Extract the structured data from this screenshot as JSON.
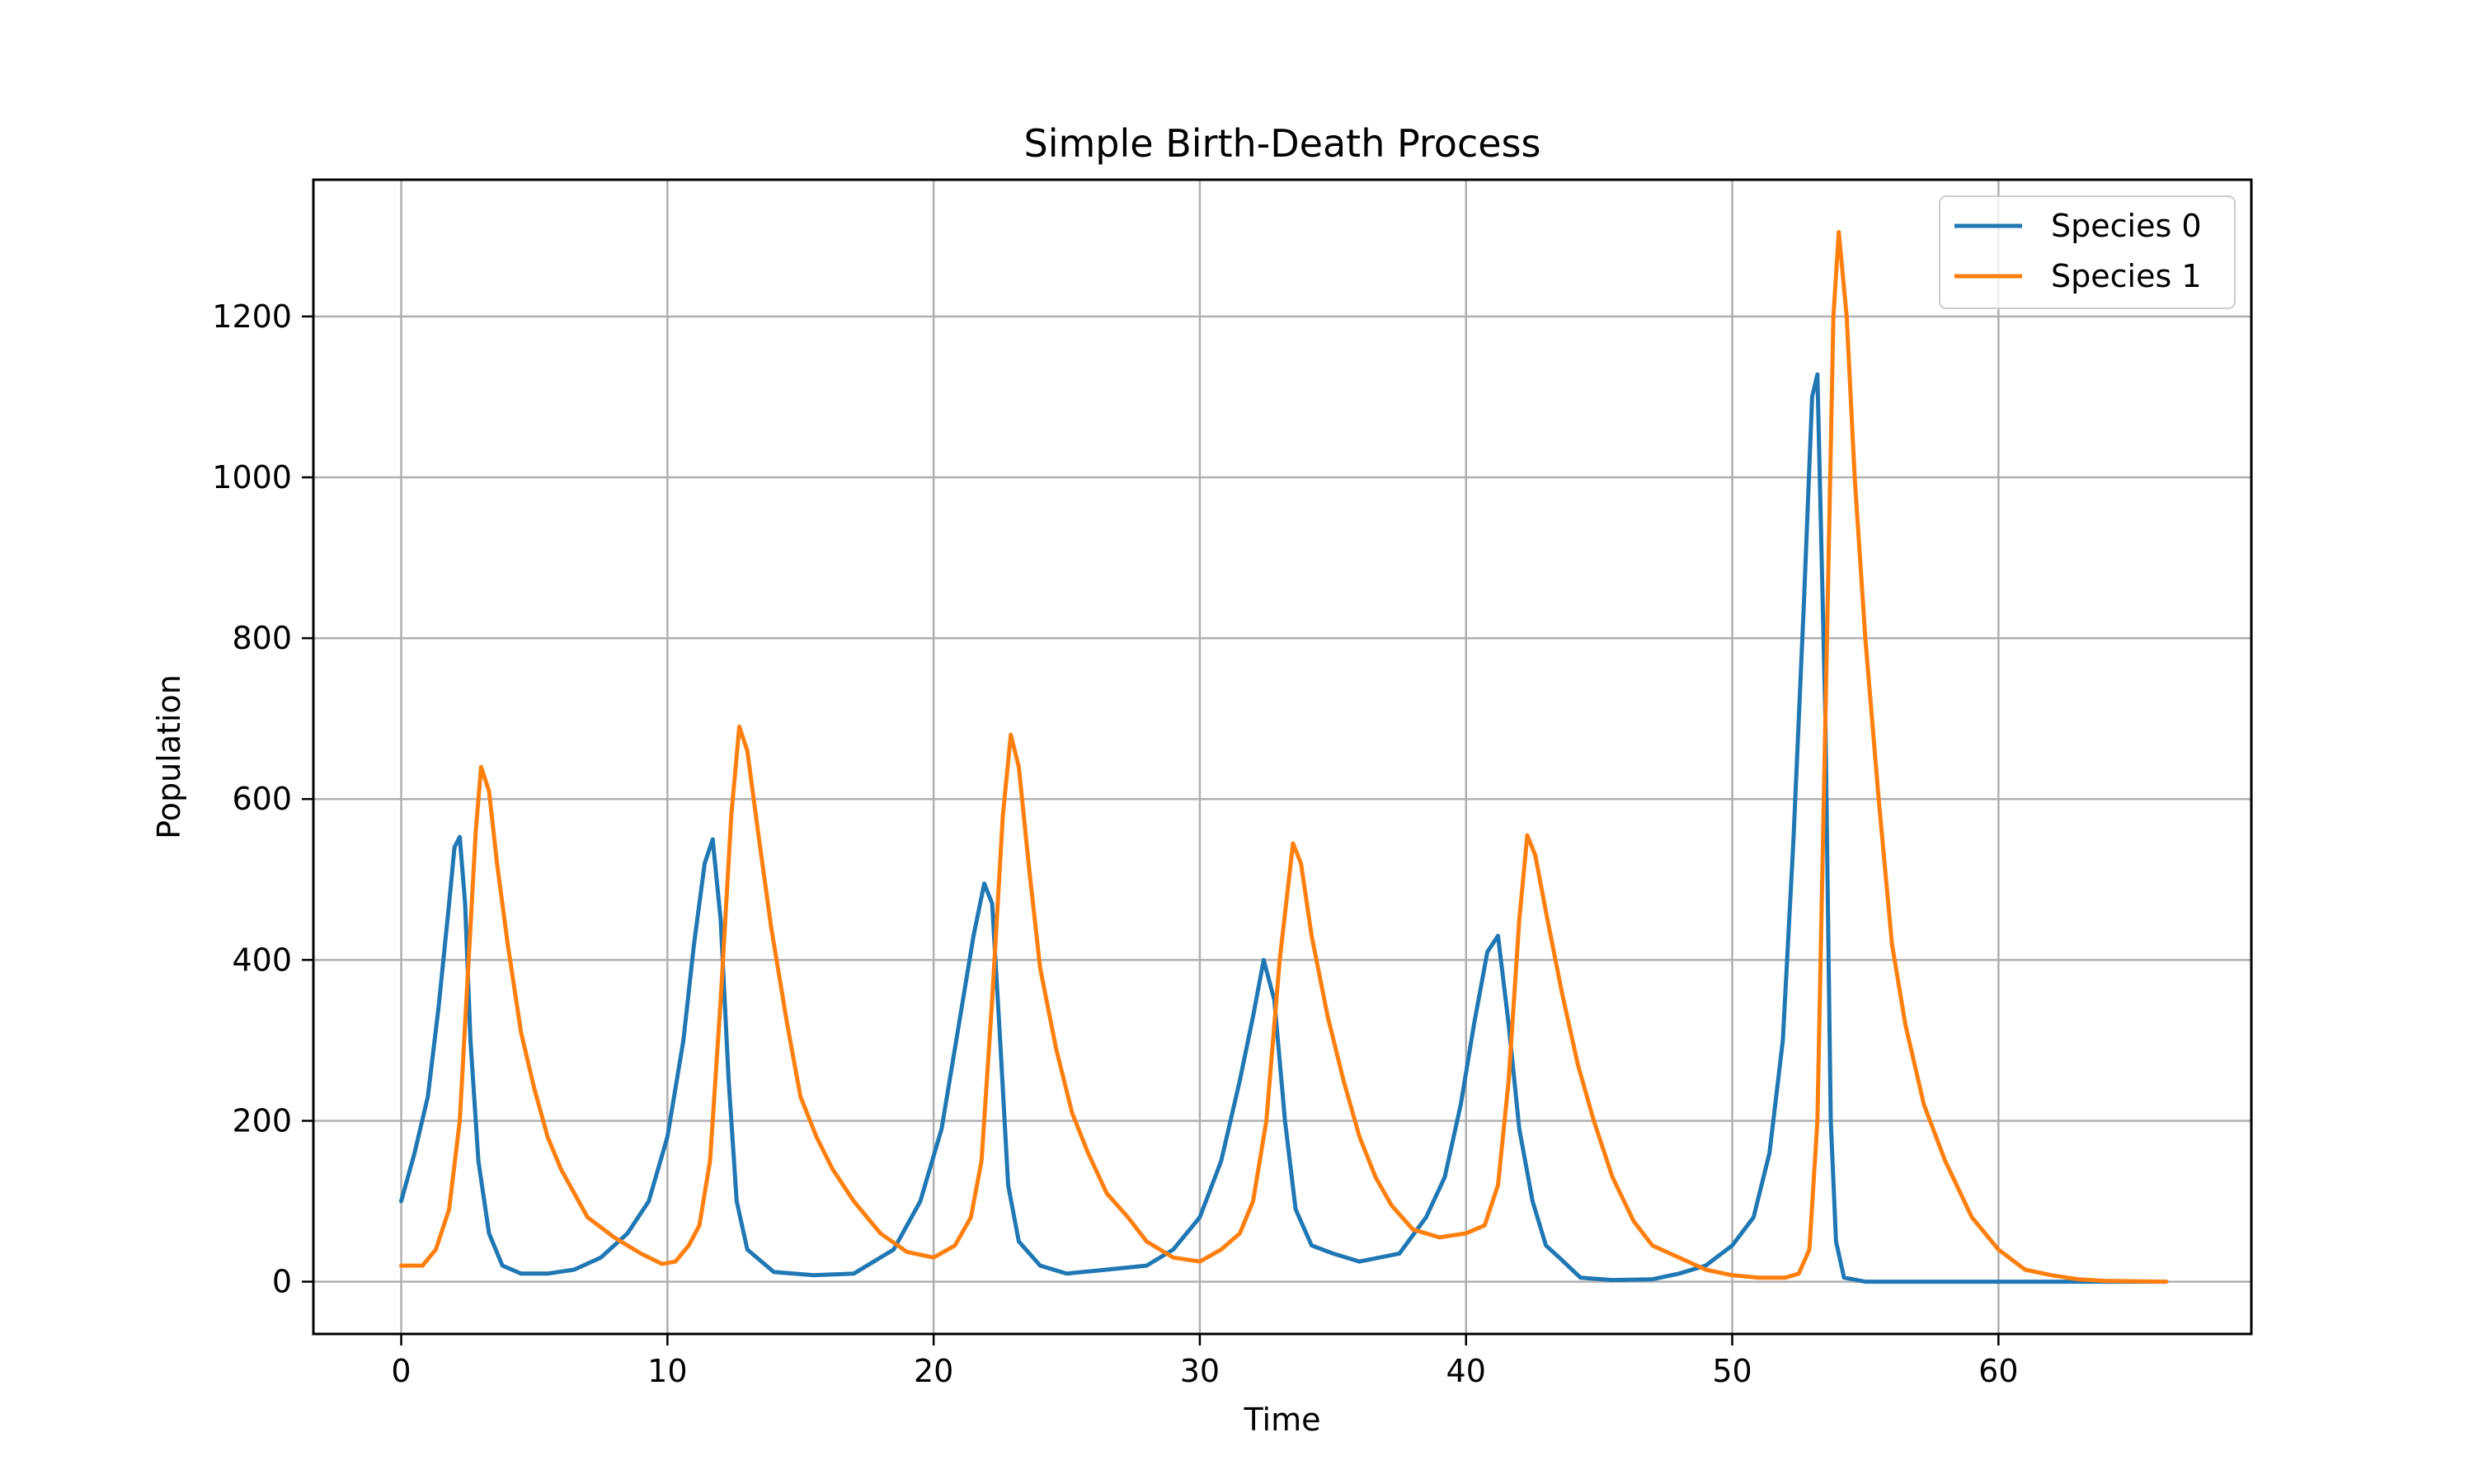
{
  "chart_data": {
    "type": "line",
    "title": "Simple Birth-Death Process",
    "xlabel": "Time",
    "ylabel": "Population",
    "xlim": [
      -3.3,
      69.5
    ],
    "ylim": [
      -65,
      1370
    ],
    "xticks": [
      0,
      10,
      20,
      30,
      40,
      50,
      60
    ],
    "yticks": [
      0,
      200,
      400,
      600,
      800,
      1000,
      1200
    ],
    "grid": true,
    "legend_position": "top-right",
    "series": [
      {
        "name": "Species 0",
        "color": "#1f77b4",
        "points": [
          [
            0,
            100
          ],
          [
            0.5,
            160
          ],
          [
            1.0,
            230
          ],
          [
            1.4,
            340
          ],
          [
            1.8,
            470
          ],
          [
            2.0,
            540
          ],
          [
            2.2,
            553
          ],
          [
            2.4,
            470
          ],
          [
            2.6,
            300
          ],
          [
            2.9,
            150
          ],
          [
            3.3,
            60
          ],
          [
            3.8,
            20
          ],
          [
            4.5,
            10
          ],
          [
            5.5,
            10
          ],
          [
            6.5,
            15
          ],
          [
            7.5,
            30
          ],
          [
            8.5,
            60
          ],
          [
            9.3,
            100
          ],
          [
            10.0,
            180
          ],
          [
            10.6,
            300
          ],
          [
            11.0,
            420
          ],
          [
            11.4,
            520
          ],
          [
            11.7,
            550
          ],
          [
            12.0,
            450
          ],
          [
            12.3,
            250
          ],
          [
            12.6,
            100
          ],
          [
            13.0,
            40
          ],
          [
            14.0,
            12
          ],
          [
            15.5,
            8
          ],
          [
            17.0,
            10
          ],
          [
            18.5,
            40
          ],
          [
            19.5,
            100
          ],
          [
            20.3,
            190
          ],
          [
            20.9,
            310
          ],
          [
            21.5,
            430
          ],
          [
            21.9,
            495
          ],
          [
            22.2,
            470
          ],
          [
            22.5,
            300
          ],
          [
            22.8,
            120
          ],
          [
            23.2,
            50
          ],
          [
            24.0,
            20
          ],
          [
            25.0,
            10
          ],
          [
            26.5,
            15
          ],
          [
            28.0,
            20
          ],
          [
            29.0,
            40
          ],
          [
            30.0,
            80
          ],
          [
            30.8,
            150
          ],
          [
            31.5,
            250
          ],
          [
            32.0,
            330
          ],
          [
            32.4,
            400
          ],
          [
            32.8,
            350
          ],
          [
            33.2,
            200
          ],
          [
            33.6,
            90
          ],
          [
            34.2,
            45
          ],
          [
            35.0,
            35
          ],
          [
            36.0,
            25
          ],
          [
            37.5,
            35
          ],
          [
            38.5,
            80
          ],
          [
            39.2,
            130
          ],
          [
            39.8,
            220
          ],
          [
            40.3,
            320
          ],
          [
            40.8,
            410
          ],
          [
            41.2,
            430
          ],
          [
            41.6,
            320
          ],
          [
            42.0,
            190
          ],
          [
            42.5,
            100
          ],
          [
            43.0,
            45
          ],
          [
            43.5,
            30
          ],
          [
            44.3,
            5
          ],
          [
            45.5,
            2
          ],
          [
            47.0,
            3
          ],
          [
            48.0,
            10
          ],
          [
            49.0,
            20
          ],
          [
            50.0,
            45
          ],
          [
            50.8,
            80
          ],
          [
            51.4,
            160
          ],
          [
            51.9,
            300
          ],
          [
            52.3,
            550
          ],
          [
            52.7,
            850
          ],
          [
            53.0,
            1100
          ],
          [
            53.2,
            1128
          ],
          [
            53.5,
            700
          ],
          [
            53.7,
            200
          ],
          [
            53.9,
            50
          ],
          [
            54.2,
            5
          ],
          [
            55.0,
            0
          ],
          [
            60.0,
            0
          ],
          [
            66.3,
            0
          ]
        ]
      },
      {
        "name": "Species 1",
        "color": "#ff7f0e",
        "points": [
          [
            0,
            20
          ],
          [
            0.8,
            20
          ],
          [
            1.3,
            40
          ],
          [
            1.8,
            90
          ],
          [
            2.2,
            200
          ],
          [
            2.5,
            380
          ],
          [
            2.8,
            560
          ],
          [
            3.0,
            640
          ],
          [
            3.3,
            610
          ],
          [
            3.6,
            520
          ],
          [
            4.0,
            420
          ],
          [
            4.5,
            310
          ],
          [
            5.0,
            240
          ],
          [
            5.5,
            180
          ],
          [
            6.0,
            140
          ],
          [
            6.5,
            110
          ],
          [
            7.0,
            80
          ],
          [
            8.0,
            55
          ],
          [
            9.0,
            35
          ],
          [
            9.8,
            22
          ],
          [
            10.3,
            25
          ],
          [
            10.8,
            45
          ],
          [
            11.2,
            70
          ],
          [
            11.6,
            150
          ],
          [
            12.0,
            350
          ],
          [
            12.4,
            580
          ],
          [
            12.7,
            690
          ],
          [
            13.0,
            660
          ],
          [
            13.4,
            560
          ],
          [
            13.9,
            440
          ],
          [
            14.5,
            320
          ],
          [
            15.0,
            230
          ],
          [
            15.6,
            180
          ],
          [
            16.2,
            140
          ],
          [
            17.0,
            100
          ],
          [
            18.0,
            60
          ],
          [
            19.0,
            37
          ],
          [
            20.0,
            30
          ],
          [
            20.8,
            45
          ],
          [
            21.4,
            80
          ],
          [
            21.8,
            150
          ],
          [
            22.2,
            350
          ],
          [
            22.6,
            580
          ],
          [
            22.9,
            680
          ],
          [
            23.2,
            640
          ],
          [
            23.6,
            510
          ],
          [
            24.0,
            390
          ],
          [
            24.6,
            290
          ],
          [
            25.2,
            210
          ],
          [
            25.8,
            160
          ],
          [
            26.5,
            110
          ],
          [
            27.3,
            80
          ],
          [
            28.0,
            50
          ],
          [
            29.0,
            30
          ],
          [
            30.0,
            25
          ],
          [
            30.8,
            40
          ],
          [
            31.5,
            60
          ],
          [
            32.0,
            100
          ],
          [
            32.5,
            200
          ],
          [
            33.0,
            400
          ],
          [
            33.5,
            545
          ],
          [
            33.8,
            520
          ],
          [
            34.2,
            430
          ],
          [
            34.8,
            330
          ],
          [
            35.4,
            250
          ],
          [
            36.0,
            180
          ],
          [
            36.6,
            130
          ],
          [
            37.2,
            95
          ],
          [
            38.0,
            65
          ],
          [
            39.0,
            55
          ],
          [
            40.0,
            60
          ],
          [
            40.7,
            70
          ],
          [
            41.2,
            120
          ],
          [
            41.6,
            250
          ],
          [
            42.0,
            450
          ],
          [
            42.3,
            555
          ],
          [
            42.6,
            530
          ],
          [
            43.0,
            460
          ],
          [
            43.6,
            360
          ],
          [
            44.2,
            270
          ],
          [
            44.8,
            200
          ],
          [
            45.5,
            130
          ],
          [
            46.3,
            75
          ],
          [
            47.0,
            45
          ],
          [
            48.0,
            30
          ],
          [
            49.0,
            15
          ],
          [
            50.0,
            8
          ],
          [
            51.0,
            5
          ],
          [
            52.0,
            5
          ],
          [
            52.5,
            10
          ],
          [
            52.9,
            40
          ],
          [
            53.2,
            200
          ],
          [
            53.5,
            700
          ],
          [
            53.8,
            1200
          ],
          [
            54.0,
            1305
          ],
          [
            54.3,
            1200
          ],
          [
            54.6,
            1000
          ],
          [
            55.0,
            800
          ],
          [
            55.5,
            600
          ],
          [
            56.0,
            420
          ],
          [
            56.5,
            320
          ],
          [
            57.2,
            220
          ],
          [
            58.0,
            150
          ],
          [
            59.0,
            80
          ],
          [
            60.0,
            40
          ],
          [
            61.0,
            15
          ],
          [
            62.0,
            8
          ],
          [
            63.0,
            3
          ],
          [
            64.0,
            1
          ],
          [
            66.3,
            0
          ]
        ]
      }
    ]
  }
}
